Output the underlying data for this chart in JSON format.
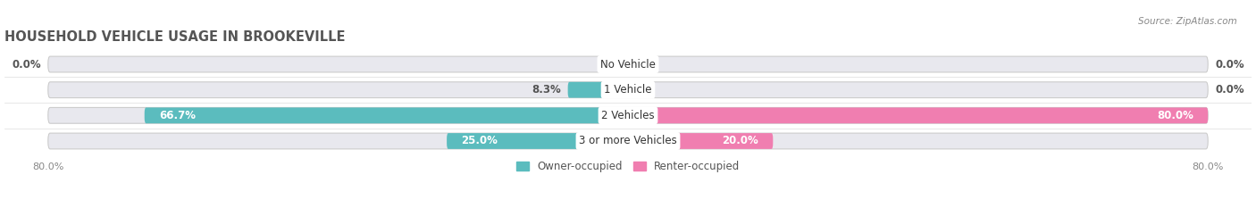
{
  "title": "HOUSEHOLD VEHICLE USAGE IN BROOKEVILLE",
  "source": "Source: ZipAtlas.com",
  "categories": [
    "No Vehicle",
    "1 Vehicle",
    "2 Vehicles",
    "3 or more Vehicles"
  ],
  "owner_values": [
    0.0,
    8.3,
    66.7,
    25.0
  ],
  "renter_values": [
    0.0,
    0.0,
    80.0,
    20.0
  ],
  "owner_color": "#5bbcbe",
  "renter_color": "#f07eb0",
  "bar_bg_color": "#e8e8ee",
  "owner_label": "Owner-occupied",
  "renter_label": "Renter-occupied",
  "max_val": 80.0,
  "x_tick_labels": [
    "80.0%",
    "80.0%"
  ],
  "title_fontsize": 10.5,
  "label_fontsize": 8.5,
  "cat_fontsize": 8.5,
  "bar_height": 0.62,
  "fig_width": 14.06,
  "fig_height": 2.33,
  "background_color": "#ffffff",
  "bar_gap": 0.12
}
